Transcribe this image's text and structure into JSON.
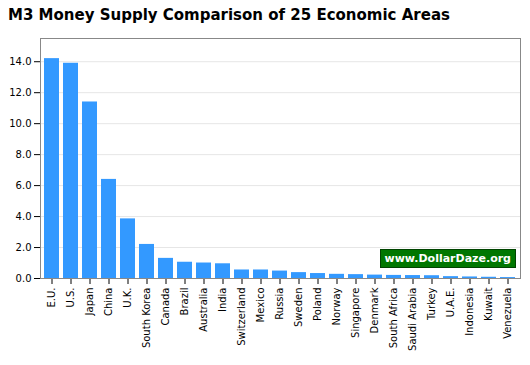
{
  "chart_data": {
    "type": "bar",
    "title": "M3 Money Supply Comparison of 25 Economic Areas",
    "categories": [
      "E.U.",
      "U.S.",
      "Japan",
      "China",
      "U.K.",
      "South Korea",
      "Canada",
      "Brazil",
      "Australia",
      "India",
      "Switzerland",
      "Mexico",
      "Russia",
      "Sweden",
      "Poland",
      "Norway",
      "Singapore",
      "Denmark",
      "South Africa",
      "Saudi Arabia",
      "Turkey",
      "U.A.E.",
      "Indonesia",
      "Kuwait",
      "Venezuela"
    ],
    "values": [
      14.2,
      13.9,
      11.4,
      6.4,
      3.85,
      2.2,
      1.3,
      1.05,
      1.0,
      0.95,
      0.55,
      0.55,
      0.48,
      0.38,
      0.32,
      0.27,
      0.25,
      0.22,
      0.2,
      0.19,
      0.18,
      0.12,
      0.1,
      0.08,
      0.06
    ],
    "color": "#3399ff",
    "ylim": [
      0,
      15.5
    ],
    "yticks": [
      {
        "value": 0,
        "label": "0.0"
      },
      {
        "value": 2,
        "label": "2.0"
      },
      {
        "value": 4,
        "label": "4.0"
      },
      {
        "value": 6,
        "label": "6.0"
      },
      {
        "value": 8,
        "label": "8.0"
      },
      {
        "value": 10,
        "label": "10.0"
      },
      {
        "value": 12,
        "label": "12.0"
      },
      {
        "value": 14,
        "label": "14.0"
      }
    ],
    "grid": true,
    "annotations": [
      "www.DollarDaze.org"
    ]
  }
}
